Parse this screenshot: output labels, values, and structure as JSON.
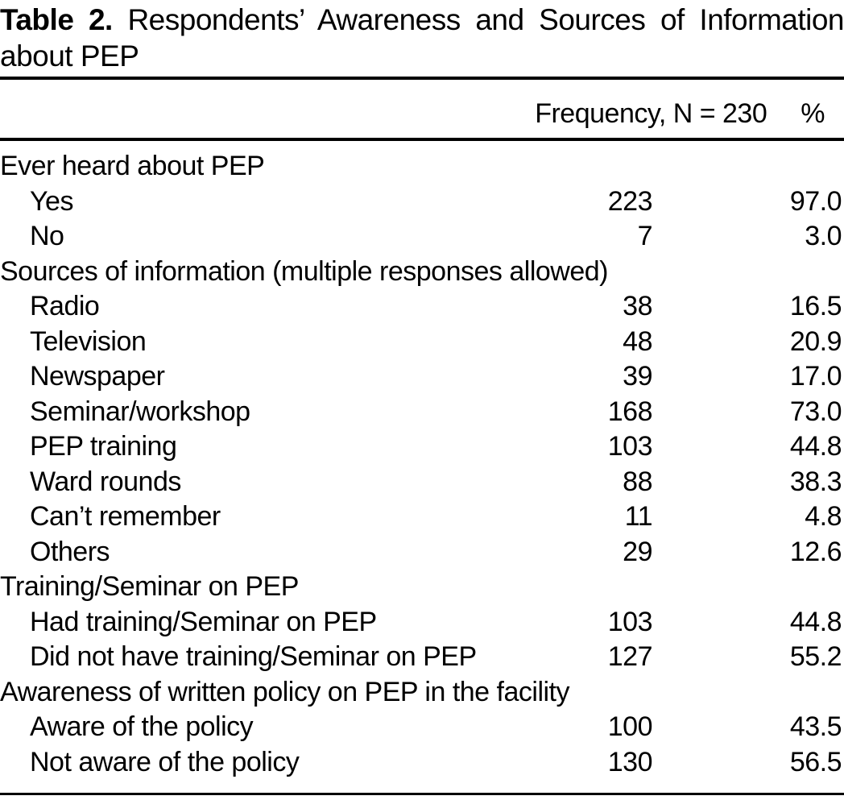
{
  "colors": {
    "text": "#000000",
    "background": "#ffffff",
    "rule": "#000000"
  },
  "table": {
    "label": "Table 2.",
    "title_line1": "Respondents’ Awareness and Sources of Information",
    "title_line2": "about PEP",
    "columns": {
      "frequency": "Frequency, N = 230",
      "percent": "%"
    },
    "rows": [
      {
        "type": "section",
        "label": "Ever heard about PEP",
        "freq": "",
        "pct": ""
      },
      {
        "type": "item",
        "label": "Yes",
        "freq": "223",
        "pct": "97.0"
      },
      {
        "type": "item",
        "label": "No",
        "freq": "7",
        "pct": "3.0"
      },
      {
        "type": "section",
        "label": "Sources of information (multiple responses allowed)",
        "freq": "",
        "pct": ""
      },
      {
        "type": "item",
        "label": "Radio",
        "freq": "38",
        "pct": "16.5"
      },
      {
        "type": "item",
        "label": "Television",
        "freq": "48",
        "pct": "20.9"
      },
      {
        "type": "item",
        "label": "Newspaper",
        "freq": "39",
        "pct": "17.0"
      },
      {
        "type": "item",
        "label": "Seminar/workshop",
        "freq": "168",
        "pct": "73.0"
      },
      {
        "type": "item",
        "label": "PEP training",
        "freq": "103",
        "pct": "44.8"
      },
      {
        "type": "item",
        "label": "Ward rounds",
        "freq": "88",
        "pct": "38.3"
      },
      {
        "type": "item",
        "label": "Can’t remember",
        "freq": "11",
        "pct": "4.8"
      },
      {
        "type": "item",
        "label": "Others",
        "freq": "29",
        "pct": "12.6"
      },
      {
        "type": "section",
        "label": "Training/Seminar on PEP",
        "freq": "",
        "pct": ""
      },
      {
        "type": "item",
        "label": "Had training/Seminar on PEP",
        "freq": "103",
        "pct": "44.8"
      },
      {
        "type": "item",
        "label": "Did not have training/Seminar on PEP",
        "freq": "127",
        "pct": "55.2"
      },
      {
        "type": "section",
        "label": "Awareness of written policy on PEP in the facility",
        "freq": "",
        "pct": ""
      },
      {
        "type": "item",
        "label": "Aware of the policy",
        "freq": "100",
        "pct": "43.5"
      },
      {
        "type": "item",
        "label": "Not aware of the policy",
        "freq": "130",
        "pct": "56.5"
      }
    ]
  }
}
